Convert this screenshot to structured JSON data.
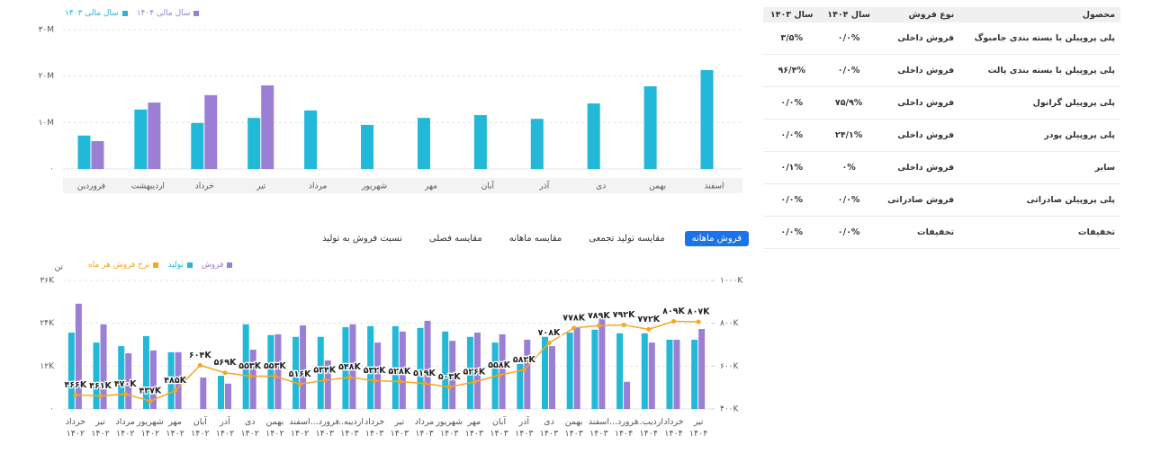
{
  "chart_data": [
    {
      "type": "bar",
      "categories": [
        "فروردین",
        "اردیبهشت",
        "خرداد",
        "تیر",
        "مرداد",
        "شهریور",
        "مهر",
        "آبان",
        "آذر",
        "دی",
        "بهمن",
        "اسفند"
      ],
      "series": [
        {
          "name": "سال مالی ۱۴۰۴",
          "color": "#9b7fd4",
          "values": [
            6000000,
            14300000,
            15900000,
            18000000,
            null,
            null,
            null,
            null,
            null,
            null,
            null,
            null
          ]
        },
        {
          "name": "سال مالی ۱۴۰۳",
          "color": "#22b8d8",
          "values": [
            7200000,
            12800000,
            9900000,
            11000000,
            12600000,
            9500000,
            11000000,
            11600000,
            10800000,
            14100000,
            17800000,
            21300000
          ]
        }
      ],
      "ylim": [
        0,
        30000000
      ],
      "yticks": [
        {
          "value": 0,
          "label": "۰"
        },
        {
          "value": 10000000,
          "label": "۱۰M"
        },
        {
          "value": 20000000,
          "label": "۲۰M"
        },
        {
          "value": 30000000,
          "label": "۳۰M"
        }
      ],
      "grid": true
    },
    {
      "type": "combo",
      "y_title": "تن",
      "categories": [
        "خرداد ۱۴۰۲",
        "تیر ۱۴۰۲",
        "مرداد ۱۴۰۲",
        "شهریور ۱۴۰۲",
        "مهر ۱۴۰۲",
        "آبان ۱۴۰۲",
        "آذر ۱۴۰۲",
        "دی ۱۴۰۲",
        "بهمن ۱۴۰۲",
        "اسفند ۱۴۰۲",
        "فرورد... ۱۴۰۳",
        "اردیبه... ۱۴۰۳",
        "خرداد ۱۴۰۳",
        "تیر ۱۴۰۳",
        "مرداد ۱۴۰۳",
        "شهریور ۱۴۰۳",
        "مهر ۱۴۰۳",
        "آبان ۱۴۰۳",
        "آذر ۱۴۰۳",
        "دی ۱۴۰۳",
        "بهمن ۱۴۰۳",
        "اسفند ۱۴۰۳",
        "فرورد... ۱۴۰۴",
        "اردیب... ۱۴۰۴",
        "خرداد ۱۴۰۴",
        "تیر ۱۴۰۴"
      ],
      "series": [
        {
          "name": "فروش",
          "type": "bar",
          "color": "#9b7fd4",
          "values": [
            29500,
            23700,
            15600,
            16400,
            15900,
            8800,
            7100,
            16600,
            20900,
            23400,
            13600,
            23700,
            18600,
            21700,
            24700,
            19100,
            21400,
            20900,
            19400,
            17600,
            22900,
            25400,
            7600,
            18600,
            19400,
            22400
          ]
        },
        {
          "name": "تولید",
          "type": "bar",
          "color": "#22b8d8",
          "values": [
            21400,
            18600,
            17600,
            20400,
            15900,
            null,
            9300,
            23700,
            20700,
            20200,
            20200,
            22900,
            23200,
            23200,
            22700,
            21700,
            20200,
            18600,
            12600,
            20200,
            21400,
            22200,
            21200,
            21200,
            19400,
            19400
          ]
        },
        {
          "name": "نرخ فروش هر ماه",
          "type": "line",
          "axis": "y2",
          "color": "#f5a623",
          "values": [
            466000,
            461000,
            470000,
            437000,
            485000,
            604000,
            569000,
            553000,
            553000,
            516000,
            534000,
            548000,
            532000,
            528000,
            519000,
            503000,
            526000,
            558000,
            582000,
            708000,
            778000,
            789000,
            792000,
            772000,
            809000,
            807000
          ],
          "value_labels": [
            "۴۶۶K",
            "۴۶۱K",
            "۴۷۰K",
            "۴۳۷K",
            "۴۸۵K",
            "۶۰۴K",
            "۵۶۹K",
            "۵۵۳K",
            "۵۵۳K",
            "۵۱۶K",
            "۵۳۴K",
            "۵۴۸K",
            "۵۳۲K",
            "۵۲۸K",
            "۵۱۹K",
            "۵۰۳K",
            "۵۲۶K",
            "۵۵۸K",
            "۵۸۲K",
            "۷۰۸K",
            "۷۷۸K",
            "۷۸۹K",
            "۷۹۲K",
            "۷۷۲K",
            "۸۰۹K",
            "۸۰۷K"
          ]
        }
      ],
      "ylim": [
        0,
        36000
      ],
      "yticks": [
        {
          "value": 0,
          "label": "۰"
        },
        {
          "value": 12000,
          "label": "۱۲K"
        },
        {
          "value": 24000,
          "label": "۲۴K"
        },
        {
          "value": 36000,
          "label": "۳۶K"
        }
      ],
      "y2lim": [
        400000,
        1000000
      ],
      "y2ticks": [
        {
          "value": 400000,
          "label": "۴۰۰K"
        },
        {
          "value": 600000,
          "label": "۶۰۰K"
        },
        {
          "value": 800000,
          "label": "۸۰۰K"
        },
        {
          "value": 1000000,
          "label": "۱۰۰۰K"
        }
      ],
      "grid": true
    }
  ],
  "tabs": [
    "فروش ماهانه",
    "مقایسه تولید تجمعی",
    "مقایسه ماهانه",
    "مقایسه فصلی",
    "نسبت فروش به تولید"
  ],
  "table": {
    "columns": [
      "محصول",
      "نوع فروش",
      "سال ۱۴۰۴",
      "سال ۱۴۰۳"
    ],
    "rows": [
      [
        "پلی پروپیلن با بسته بندی جامبوگ",
        "فروش داخلی",
        "۰/۰%",
        "۳/۵%"
      ],
      [
        "پلی پروپیلن با بسته بندی پالت",
        "فروش داخلی",
        "۰/۰%",
        "۹۶/۴%"
      ],
      [
        "پلی پروپیلن گرانول",
        "فروش داخلی",
        "۷۵/۹%",
        "۰/۰%"
      ],
      [
        "پلی پروپیلن پودر",
        "فروش داخلی",
        "۲۴/۱%",
        "۰/۰%"
      ],
      [
        "سایر",
        "فروش داخلی",
        "۰%",
        "۰/۱%"
      ],
      [
        "پلی پروپیلن صادراتی",
        "فروش صادراتی",
        "۰/۰%",
        "۰/۰%"
      ],
      [
        "تخفیفات",
        "تخفیفات",
        "۰/۰%",
        "۰/۰%"
      ]
    ]
  }
}
